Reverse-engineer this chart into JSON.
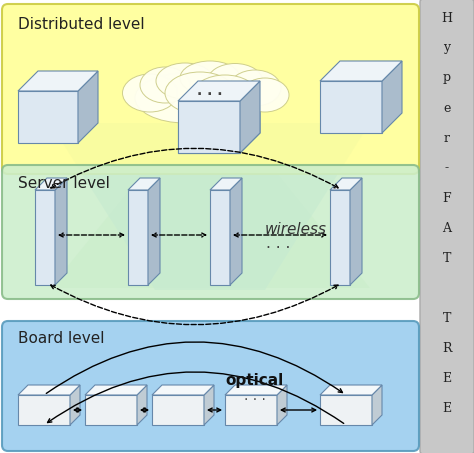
{
  "distributed_label": "Distributed level",
  "server_label": "Server level",
  "board_label": "Board level",
  "wireless_label": "wireless",
  "optical_label": "optical",
  "dots": ". . .",
  "bg_color": "#ffffff",
  "sidebar_color": "#c8c8c8",
  "dist_box_color": "#ffff99",
  "dist_box_edge": "#cccc44",
  "server_box_color": "#cceecc",
  "server_box_edge": "#88bb88",
  "board_box_color": "#99ccee",
  "board_box_edge": "#5599bb",
  "cone_green_color": "#cceecc",
  "cone_blue_color": "#99ccee",
  "cube_front": "#dde8f2",
  "cube_side": "#aabccc",
  "cube_top": "#eef4f8",
  "slab_front": "#dde8f2",
  "slab_side": "#aabccc",
  "slab_top": "#eef4f8",
  "flat_front": "#eef2f4",
  "flat_side": "#c0ccd4",
  "flat_top": "#f4f8fa",
  "cloud_fill": "#fffff0",
  "cloud_edge": "#cccc88",
  "sidebar_chars": [
    "H",
    "y",
    "p",
    "e",
    "r",
    "-",
    "F",
    "A",
    "T",
    " ",
    "T",
    "R",
    "E",
    "E"
  ]
}
